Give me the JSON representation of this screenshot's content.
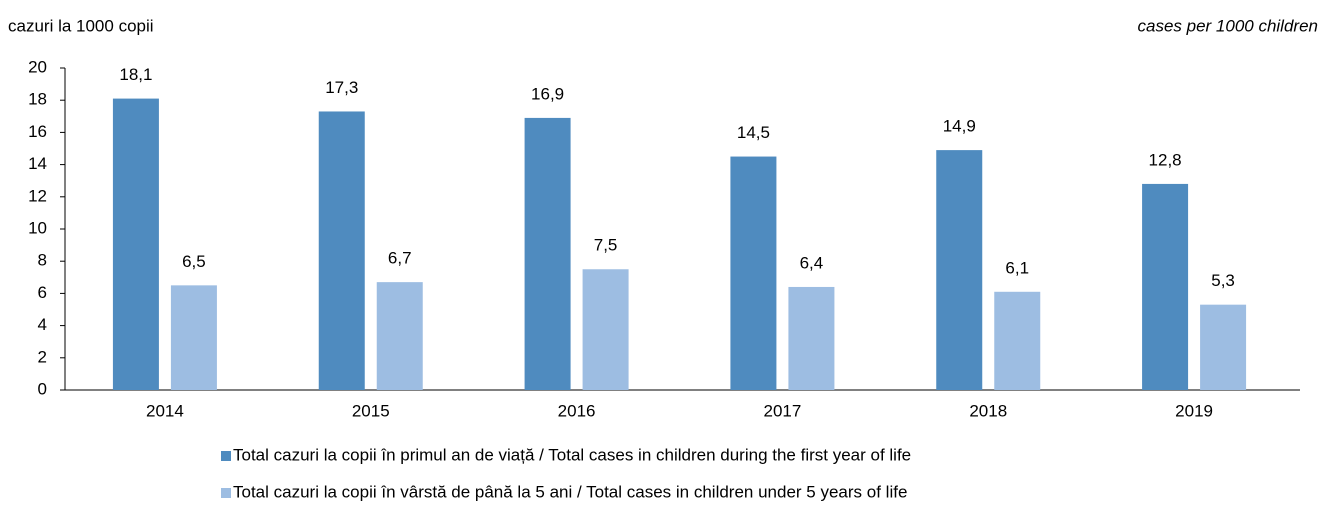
{
  "chart_data": {
    "type": "bar",
    "ylabel": "cazuri la 1000 copii",
    "ylabel_right": "cases per 1000 children",
    "categories": [
      "2014",
      "2015",
      "2016",
      "2017",
      "2018",
      "2019"
    ],
    "series": [
      {
        "name": "Total cazuri la copii în primul an de viață / Total cases in children during the first year of life",
        "color": "#4f8bbf",
        "values": [
          18.1,
          17.3,
          16.9,
          14.5,
          14.9,
          12.8
        ],
        "value_labels": [
          "18,1",
          "17,3",
          "16,9",
          "14,5",
          "14,9",
          "12,8"
        ]
      },
      {
        "name": "Total cazuri la copii în vârstă de până la 5 ani / Total cases in children under 5 years of life",
        "color": "#9dbde2",
        "values": [
          6.5,
          6.7,
          7.5,
          6.4,
          6.1,
          5.3
        ],
        "value_labels": [
          "6,5",
          "6,7",
          "7,5",
          "6,4",
          "6,1",
          "5,3"
        ]
      }
    ],
    "ylim": [
      0,
      20
    ],
    "yticks": [
      0,
      2,
      4,
      6,
      8,
      10,
      12,
      14,
      16,
      18,
      20
    ],
    "grid": false
  }
}
